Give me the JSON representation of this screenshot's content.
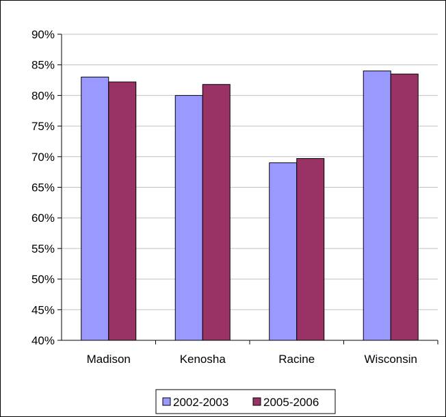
{
  "chart_data": {
    "type": "bar",
    "categories": [
      "Madison",
      "Kenosha",
      "Racine",
      "Wisconsin"
    ],
    "series": [
      {
        "name": "2002-2003",
        "values": [
          0.83,
          0.8,
          0.69,
          0.84
        ],
        "color": "#9999ff"
      },
      {
        "name": "2005-2006",
        "values": [
          0.822,
          0.818,
          0.697,
          0.835
        ],
        "color": "#993366"
      }
    ],
    "y_ticks": [
      "40%",
      "45%",
      "50%",
      "55%",
      "60%",
      "65%",
      "70%",
      "75%",
      "80%",
      "85%",
      "90%"
    ],
    "ylim": [
      0.4,
      0.9
    ],
    "grid": true,
    "legend_position": "bottom"
  }
}
